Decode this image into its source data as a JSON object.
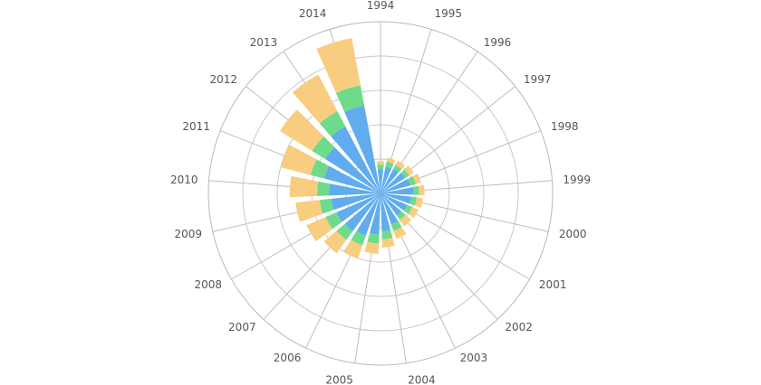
{
  "chart_data": {
    "type": "bar",
    "subtype": "stacked-polar-column",
    "title": "",
    "categories": [
      "1994",
      "1995",
      "1996",
      "1997",
      "1998",
      "1999",
      "2000",
      "2001",
      "2002",
      "2003",
      "2004",
      "2005",
      "2006",
      "2007",
      "2008",
      "2009",
      "2010",
      "2011",
      "2012",
      "2013",
      "2014"
    ],
    "series": [
      {
        "values": [
          35,
          40,
          40,
          42,
          45,
          48,
          45,
          42,
          40,
          48,
          55,
          60,
          65,
          68,
          70,
          72,
          75,
          85,
          95,
          110,
          130
        ],
        "color": "#60acee"
      },
      {
        "values": [
          7,
          7,
          7,
          7,
          8,
          8,
          8,
          8,
          8,
          10,
          12,
          13,
          15,
          16,
          17,
          17,
          17,
          20,
          22,
          25,
          30
        ],
        "color": "#6ddb8a"
      },
      {
        "values": [
          5,
          6,
          7,
          8,
          8,
          8,
          9,
          10,
          11,
          12,
          12,
          15,
          20,
          24,
          30,
          35,
          40,
          45,
          55,
          60,
          70
        ],
        "color": "#f8cd7f"
      }
    ],
    "radial_max": 250,
    "grid_rings": 5,
    "grid": true,
    "legend": "none",
    "start_angle_deg": 0,
    "direction": "clockwise"
  }
}
